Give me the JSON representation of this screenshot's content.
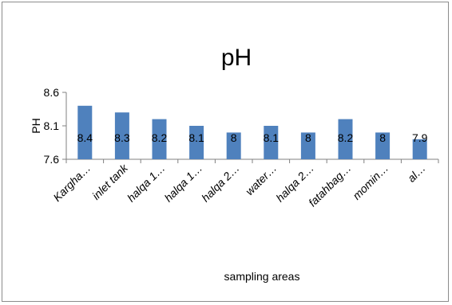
{
  "chart_data": {
    "type": "bar",
    "title": "pH",
    "xlabel": "sampling areas",
    "ylabel": "PH",
    "categories": [
      "Kargha…",
      "inlet tank",
      "halqa 1…",
      "halqa 1…",
      "halqa 2…",
      "water…",
      "halqa 2…",
      "fatahbag…",
      "momin…",
      "al…"
    ],
    "values": [
      8.4,
      8.3,
      8.2,
      8.1,
      8,
      8.1,
      8,
      8.2,
      8,
      7.9
    ],
    "data_labels": [
      "8.4",
      "8.3",
      "8.2",
      "8.1",
      "8",
      "8.1",
      "8",
      "8.2",
      "8",
      "7.9"
    ],
    "yticks": [
      7.6,
      8.1,
      8.6
    ],
    "ytick_labels": [
      "7.6",
      "8.1",
      "8.6"
    ],
    "ylim": [
      7.6,
      8.6
    ],
    "grid": false,
    "legend": "none",
    "bar_color": "#4f81bd"
  }
}
